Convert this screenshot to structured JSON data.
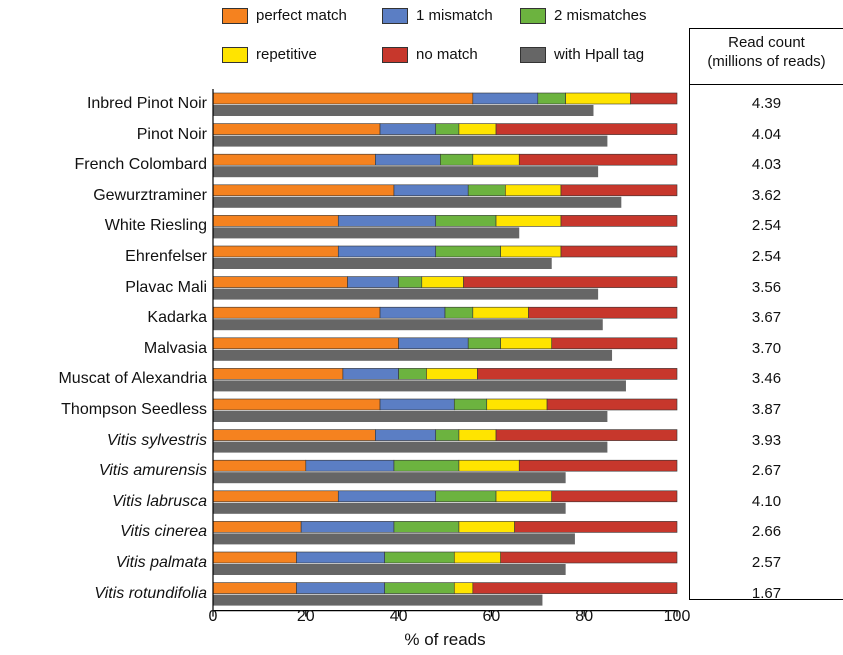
{
  "chart_data": {
    "type": "bar",
    "orientation": "horizontal",
    "stacked": true,
    "xlabel": "% of reads",
    "xlim": [
      0,
      100
    ],
    "xticks": [
      "0",
      "20",
      "40",
      "60",
      "80",
      "100"
    ],
    "legend": [
      {
        "name": "perfect match",
        "color": "#f5821f"
      },
      {
        "name": "1 mismatch",
        "color": "#5b7ec4"
      },
      {
        "name": "2 mismatches",
        "color": "#6cb33f"
      },
      {
        "name": "repetitive",
        "color": "#ffe400"
      },
      {
        "name": "no match",
        "color": "#c7372c"
      },
      {
        "name": "with Hpall tag",
        "color": "#666666"
      }
    ],
    "categories": [
      {
        "label": "Inbred Pinot Noir",
        "italic": false
      },
      {
        "label": "Pinot Noir",
        "italic": false
      },
      {
        "label": "French Colombard",
        "italic": false
      },
      {
        "label": "Gewurztraminer",
        "italic": false
      },
      {
        "label": "White Riesling",
        "italic": false
      },
      {
        "label": "Ehrenfelser",
        "italic": false
      },
      {
        "label": "Plavac Mali",
        "italic": false
      },
      {
        "label": "Kadarka",
        "italic": false
      },
      {
        "label": "Malvasia",
        "italic": false
      },
      {
        "label": "Muscat of Alexandria",
        "italic": false
      },
      {
        "label": "Thompson Seedless",
        "italic": false
      },
      {
        "label": "Vitis sylvestris",
        "italic": true
      },
      {
        "label": "Vitis amurensis",
        "italic": true
      },
      {
        "label": "Vitis labrusca",
        "italic": true
      },
      {
        "label": "Vitis cinerea",
        "italic": true
      },
      {
        "label": "Vitis palmata",
        "italic": true
      },
      {
        "label": "Vitis rotundifolia",
        "italic": true
      }
    ],
    "series": [
      {
        "name": "perfect match",
        "values": [
          56,
          36,
          35,
          39,
          27,
          27,
          29,
          36,
          40,
          28,
          36,
          35,
          20,
          27,
          19,
          18,
          18
        ]
      },
      {
        "name": "1 mismatch",
        "values": [
          14,
          12,
          14,
          16,
          21,
          21,
          11,
          14,
          15,
          12,
          16,
          13,
          19,
          21,
          20,
          19,
          19
        ]
      },
      {
        "name": "2 mismatches",
        "values": [
          6,
          5,
          7,
          8,
          13,
          14,
          5,
          6,
          7,
          6,
          7,
          5,
          14,
          13,
          14,
          15,
          15
        ]
      },
      {
        "name": "repetitive",
        "values": [
          14,
          8,
          10,
          12,
          14,
          13,
          9,
          12,
          11,
          11,
          13,
          8,
          13,
          12,
          12,
          10,
          4
        ]
      },
      {
        "name": "no match",
        "values": [
          10,
          39,
          34,
          25,
          25,
          25,
          46,
          32,
          27,
          43,
          28,
          39,
          34,
          27,
          35,
          38,
          44
        ]
      }
    ],
    "hpall_tag": [
      82,
      85,
      83,
      88,
      66,
      73,
      83,
      84,
      86,
      89,
      85,
      85,
      76,
      76,
      78,
      76,
      71
    ]
  },
  "table": {
    "header_line1": "Read count",
    "header_line2": "(millions of reads)",
    "values": [
      "4.39",
      "4.04",
      "4.03",
      "3.62",
      "2.54",
      "2.54",
      "3.56",
      "3.67",
      "3.70",
      "3.46",
      "3.87",
      "3.93",
      "2.67",
      "4.10",
      "2.66",
      "2.57",
      "1.67"
    ]
  }
}
